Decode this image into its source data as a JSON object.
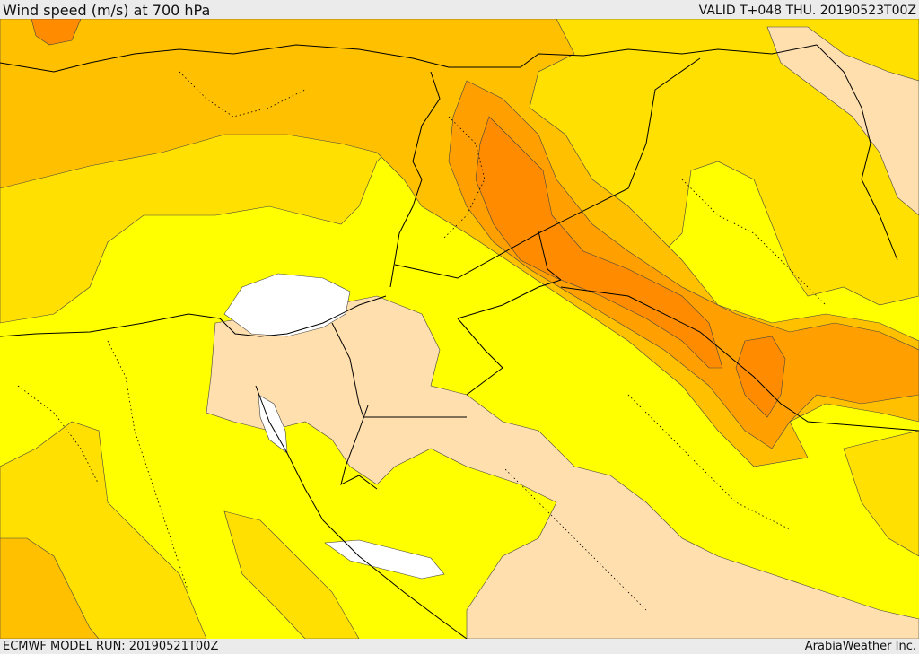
{
  "header": {
    "title": "Wind speed (m/s) at 700 hPa",
    "valid": "VALID T+048 THU. 20190523T00Z"
  },
  "footer": {
    "model_run": "ECMWF MODEL RUN: 20190521T00Z",
    "credit": "ArabiaWeather Inc."
  },
  "colors": {
    "band_white": "#ffffff",
    "band_peach": "#ffdfae",
    "band_yellow": "#ffff00",
    "band_gold": "#ffe000",
    "band_amber": "#ffc000",
    "band_orange": "#ffa000",
    "band_deep_orange": "#ff8000",
    "border": "#000000"
  }
}
